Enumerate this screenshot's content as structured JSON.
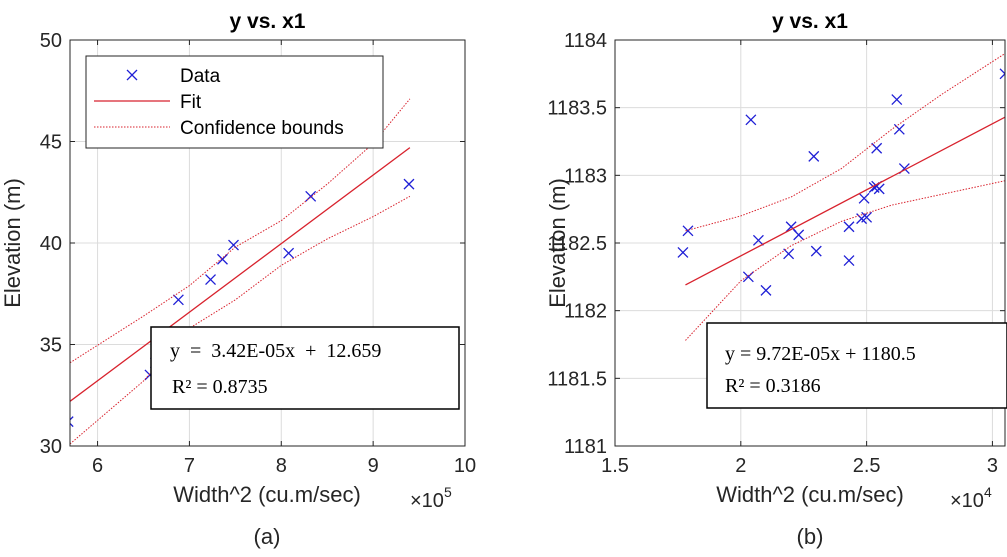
{
  "chart_data": [
    {
      "type": "scatter",
      "panel_label": "(a)",
      "title": "y vs. x1",
      "xlabel": "Width^2 (cu.m/sec)",
      "ylabel": "Elevation (m)",
      "x_multiplier": "×10",
      "x_exponent": "5",
      "xlim": [
        5.7,
        10
      ],
      "ylim": [
        30,
        50
      ],
      "xticks": [
        "6",
        "7",
        "8",
        "9",
        "10"
      ],
      "yticks": [
        "30",
        "35",
        "40",
        "45",
        "50"
      ],
      "grid": true,
      "legend": {
        "position": "top-left",
        "entries": [
          "Data",
          "Fit",
          "Confidence bounds"
        ]
      },
      "series": [
        {
          "name": "Data",
          "x": [
            5.68,
            6.57,
            6.63,
            6.88,
            7.23,
            7.36,
            7.48,
            8.08,
            8.32,
            9.39
          ],
          "y": [
            31.2,
            33.5,
            34.1,
            37.2,
            38.2,
            39.2,
            39.9,
            39.5,
            42.3,
            42.9
          ]
        },
        {
          "name": "Fit",
          "x": [
            5.7,
            9.4
          ],
          "y": [
            32.2,
            44.7
          ]
        },
        {
          "name": "Confidence bounds",
          "upper": {
            "x": [
              5.7,
              6.5,
              7.0,
              7.5,
              8.0,
              8.5,
              9.0,
              9.4
            ],
            "y": [
              34.1,
              36.4,
              37.9,
              39.8,
              41.1,
              42.9,
              44.9,
              47.1
            ]
          },
          "lower": {
            "x": [
              5.7,
              6.5,
              7.0,
              7.5,
              8.0,
              8.5,
              9.0,
              9.4
            ],
            "y": [
              30.1,
              33.2,
              35.8,
              37.2,
              38.9,
              40.2,
              41.3,
              42.3
            ]
          }
        }
      ],
      "annotation": [
        "y  =  3.42E-05x  +  12.659",
        "R² = 0.8735"
      ]
    },
    {
      "type": "scatter",
      "panel_label": "(b)",
      "title": "y vs. x1",
      "xlabel": "Width^2 (cu.m/sec)",
      "ylabel": "Elevation (m)",
      "x_multiplier": "×10",
      "x_exponent": "4",
      "xlim": [
        1.5,
        3.05
      ],
      "ylim": [
        1181,
        1184
      ],
      "xticks": [
        "1.5",
        "2",
        "2.5",
        "3"
      ],
      "yticks": [
        "1181",
        "1181.5",
        "1182",
        "1182.5",
        "1183",
        "1183.5",
        "1184"
      ],
      "grid": true,
      "series": [
        {
          "name": "Data",
          "x": [
            1.77,
            1.79,
            2.03,
            2.04,
            2.07,
            2.1,
            2.19,
            2.2,
            2.23,
            2.29,
            2.3,
            2.43,
            2.43,
            2.48,
            2.49,
            2.5,
            2.53,
            2.54,
            2.54,
            2.55,
            2.62,
            2.63,
            2.65,
            3.05
          ],
          "y": [
            1182.43,
            1182.59,
            1182.25,
            1183.41,
            1182.52,
            1182.15,
            1182.42,
            1182.62,
            1182.56,
            1183.14,
            1182.44,
            1182.37,
            1182.62,
            1182.68,
            1182.83,
            1182.69,
            1182.91,
            1182.92,
            1183.2,
            1182.9,
            1183.56,
            1183.34,
            1183.05,
            1183.75
          ]
        },
        {
          "name": "Fit",
          "x": [
            1.78,
            3.05
          ],
          "y": [
            1182.19,
            1183.43
          ]
        },
        {
          "name": "Confidence bounds",
          "upper": {
            "x": [
              1.78,
              2.0,
              2.2,
              2.4,
              2.6,
              2.8,
              3.05
            ],
            "y": [
              1182.59,
              1182.7,
              1182.84,
              1183.05,
              1183.34,
              1183.6,
              1183.9
            ]
          },
          "lower": {
            "x": [
              1.78,
              2.0,
              2.2,
              2.4,
              2.6,
              2.8,
              3.05
            ],
            "y": [
              1181.78,
              1182.22,
              1182.48,
              1182.66,
              1182.78,
              1182.86,
              1182.96
            ]
          }
        }
      ],
      "annotation": [
        "y = 9.72E-05x + 1180.5",
        "R² = 0.3186"
      ]
    }
  ]
}
